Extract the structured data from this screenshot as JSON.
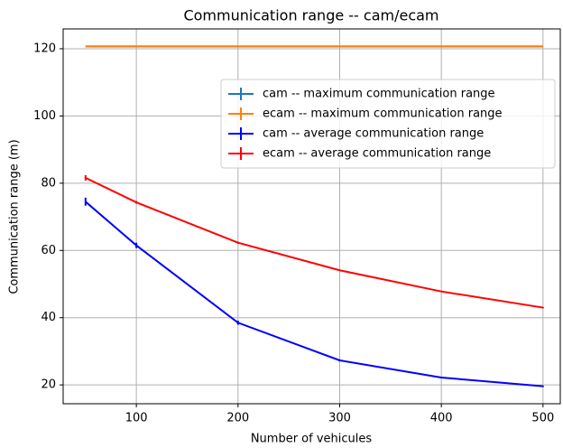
{
  "chart_data": {
    "type": "line",
    "title": "Communication range -- cam/ecam",
    "x_label": "Number of vehicules",
    "y_label": "Communication range (m)",
    "x": [
      50,
      100,
      200,
      300,
      400,
      500
    ],
    "series": [
      {
        "name": "cam -- maximum communication range",
        "color": "#1f77b4",
        "values": [
          120.7,
          120.7,
          120.7,
          120.7,
          120.7,
          120.7
        ]
      },
      {
        "name": "ecam -- maximum communication range",
        "color": "#ff7f0e",
        "values": [
          120.7,
          120.7,
          120.7,
          120.7,
          120.7,
          120.7
        ]
      },
      {
        "name": "cam -- average communication range",
        "color": "#0000ff",
        "values": [
          74.5,
          61.5,
          38.5,
          27.3,
          22.2,
          19.6
        ],
        "errors": [
          1.2,
          0.8,
          0.6,
          0.3,
          0.2,
          0.2
        ]
      },
      {
        "name": "ecam -- average communication range",
        "color": "#ff0000",
        "values": [
          81.6,
          74.3,
          62.3,
          54.1,
          47.8,
          43.0
        ],
        "errors": [
          0.8,
          0.4,
          0.3,
          0.2,
          0.2,
          0.2
        ]
      }
    ],
    "xlim": [
      28,
      517
    ],
    "xticks": [
      100,
      200,
      300,
      400,
      500
    ],
    "ylim": [
      14.4,
      125.9
    ],
    "yticks": [
      20,
      40,
      60,
      80,
      100,
      120
    ],
    "grid": true,
    "legend": "upper right"
  }
}
